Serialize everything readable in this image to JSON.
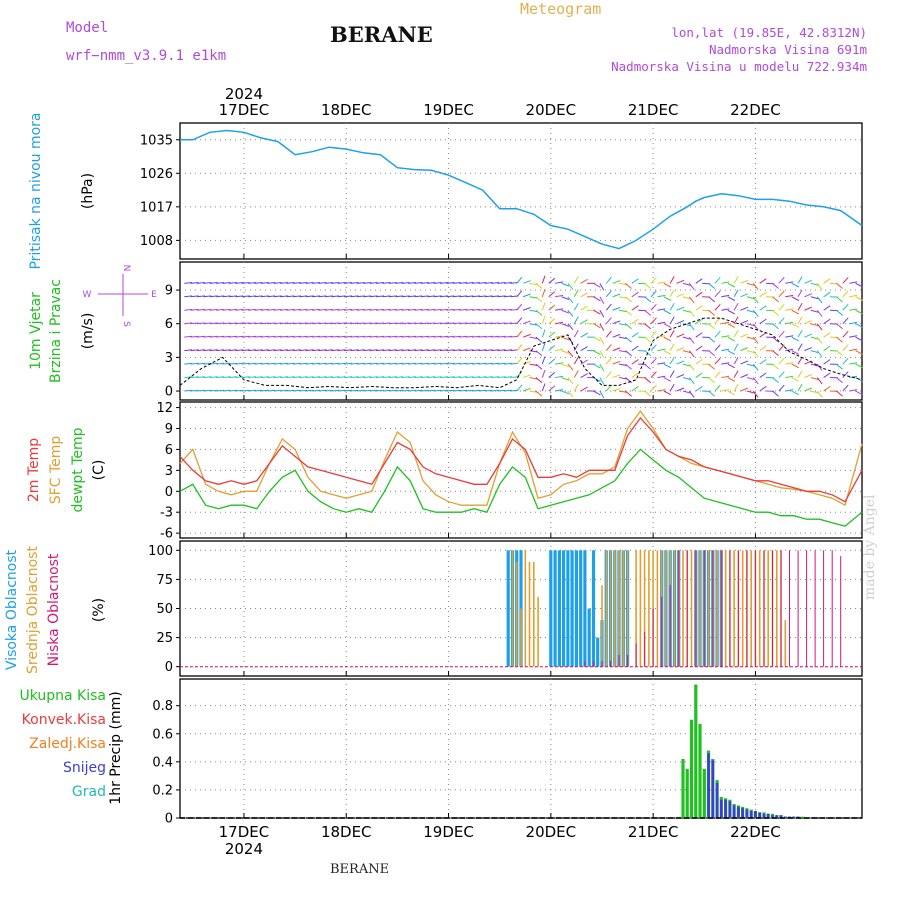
{
  "header": {
    "model_label": "Model",
    "model_name": "wrf−nmm_v3.9.1  e1km",
    "title": "BERANE",
    "meteogram": "Meteogram",
    "lonlat": "lon,lat (19.85E, 42.8312N)",
    "altitude": "Nadmorska Visina 691m",
    "model_altitude": "Nadmorska Visina u modelu 722.934m"
  },
  "footer_label": "BERANE",
  "watermark": "made by Angel",
  "time_axis": {
    "year": "2024",
    "days": [
      "17DEC",
      "18DEC",
      "19DEC",
      "20DEC",
      "21DEC",
      "22DEC"
    ],
    "start_hour": -15,
    "end_hour": 145
  },
  "compass": {
    "n": "N",
    "e": "E",
    "w": "W",
    "s": "S"
  },
  "colors": {
    "pressure": "#1ea0e8",
    "t2m": "#e83c3c",
    "sfc": "#e0a030",
    "dewpt": "#20c020",
    "high_cloud": "#1ea0e8",
    "mid_cloud": "#e0a030",
    "low_cloud": "#d01878",
    "total_precip": "#20c020",
    "conv": "#e83c3c",
    "frozen": "#f08020",
    "snow": "#3c3cd8",
    "graupel": "#20b8b8"
  },
  "chart_data": [
    {
      "type": "line",
      "panel": "pressure",
      "ylabel_name": "Pritisak na nivou mora",
      "ylabel_unit": "(hPa)",
      "yticks": [
        1008,
        1017,
        1026,
        1035
      ],
      "ylim": [
        1003,
        1039.5
      ],
      "series": [
        {
          "key": "pressure",
          "hours": [
            -15,
            -12,
            -8,
            -4,
            0,
            4,
            8,
            12,
            16,
            20,
            24,
            28,
            32,
            36,
            40,
            44,
            48,
            52,
            56,
            60,
            64,
            68,
            72,
            76,
            80,
            84,
            88,
            92,
            96,
            100,
            104,
            106,
            108,
            112,
            116,
            120,
            124,
            128,
            132,
            136,
            140,
            145
          ],
          "values": [
            1035,
            1035,
            1037,
            1037.5,
            1037,
            1035.5,
            1034.5,
            1031,
            1031.8,
            1033,
            1032.5,
            1031.5,
            1031,
            1027.5,
            1027,
            1026.8,
            1025.5,
            1023.5,
            1021.5,
            1016.5,
            1016.5,
            1015,
            1012,
            1011,
            1009,
            1007,
            1005.8,
            1008,
            1011,
            1014.5,
            1017,
            1018.5,
            1019.5,
            1020.5,
            1020,
            1019,
            1019,
            1018.5,
            1017.5,
            1017,
            1016,
            1012
          ]
        }
      ],
      "grid": true
    },
    {
      "type": "line",
      "panel": "wind",
      "ylabel_name": "10m Vjetar Brzina i Pravac",
      "ylabel_unit": "(m/s)",
      "yticks": [
        0,
        3,
        6,
        9
      ],
      "ylim": [
        -0.8,
        11.5
      ],
      "series": [
        {
          "name": "wind speed",
          "hours": [
            -15,
            -10,
            -5,
            0,
            5,
            10,
            15,
            20,
            25,
            30,
            35,
            40,
            45,
            50,
            55,
            60,
            64,
            68,
            72,
            76,
            80,
            84,
            88,
            92,
            96,
            100,
            104,
            108,
            112,
            116,
            120,
            124,
            128,
            132,
            136,
            140,
            145
          ],
          "values": [
            0.5,
            2,
            3,
            1,
            0.5,
            0.5,
            0.3,
            0.4,
            0.3,
            0.4,
            0.3,
            0.3,
            0.4,
            0.3,
            0.5,
            0.3,
            1,
            4,
            4.5,
            5,
            2,
            0.5,
            0.5,
            1,
            4.5,
            5.5,
            6,
            6.5,
            6.5,
            6,
            5.5,
            5,
            3.5,
            2.8,
            2,
            1.5,
            1
          ]
        }
      ],
      "grid": true
    },
    {
      "type": "line",
      "panel": "temperature",
      "ylabel_names": [
        "2m Temp",
        "SFC Temp",
        "dewpt Temp"
      ],
      "ylabel_unit": "(C)",
      "yticks": [
        -6,
        -3,
        0,
        3,
        6,
        9,
        12
      ],
      "ylim": [
        -6.7,
        12.8
      ],
      "series": [
        {
          "key": "t2m",
          "hours": [
            -15,
            -12,
            -9,
            -6,
            -3,
            0,
            3,
            6,
            9,
            12,
            15,
            18,
            21,
            24,
            27,
            30,
            33,
            36,
            39,
            42,
            45,
            48,
            51,
            54,
            57,
            60,
            63,
            66,
            69,
            72,
            75,
            78,
            81,
            84,
            87,
            90,
            93,
            96,
            99,
            102,
            105,
            108,
            111,
            114,
            117,
            120,
            123,
            126,
            129,
            132,
            135,
            138,
            141,
            145
          ],
          "values": [
            5,
            3,
            1.5,
            1,
            1.5,
            1,
            1.5,
            4,
            6.5,
            5,
            3.5,
            3,
            2.5,
            2,
            1.5,
            1,
            4,
            7,
            6,
            3.5,
            2.5,
            2,
            1.5,
            1,
            1,
            4,
            7.5,
            6,
            2,
            2,
            2.5,
            2,
            3,
            3,
            3,
            8,
            10.5,
            8.5,
            6,
            5,
            4.5,
            3.5,
            3,
            2.5,
            2,
            1.5,
            1.5,
            1,
            0.5,
            0,
            0,
            -0.5,
            -1.5,
            3
          ]
        },
        {
          "key": "sfc",
          "hours": [
            -15,
            -12,
            -9,
            -6,
            -3,
            0,
            3,
            6,
            9,
            12,
            15,
            18,
            21,
            24,
            27,
            30,
            33,
            36,
            39,
            42,
            45,
            48,
            51,
            54,
            57,
            60,
            63,
            66,
            69,
            72,
            75,
            78,
            81,
            84,
            87,
            90,
            93,
            96,
            99,
            102,
            105,
            108,
            111,
            114,
            117,
            120,
            123,
            126,
            129,
            132,
            135,
            138,
            141,
            145
          ],
          "values": [
            4,
            6,
            1,
            0,
            -0.5,
            0,
            0,
            4,
            7.5,
            6,
            2,
            0,
            -0.5,
            -1,
            -0.5,
            0,
            4.5,
            8.5,
            7,
            1.5,
            -0.5,
            -1.5,
            -2,
            -2,
            -2,
            4,
            8.5,
            5.5,
            -1,
            -0.5,
            1,
            1.5,
            2.5,
            2.5,
            3.5,
            9,
            11.5,
            9,
            6,
            5,
            4,
            3.5,
            3,
            2.5,
            2,
            1.5,
            1,
            0.5,
            0.3,
            0,
            -0.5,
            -1,
            -2,
            6.8
          ]
        },
        {
          "key": "dewpt",
          "hours": [
            -15,
            -12,
            -9,
            -6,
            -3,
            0,
            3,
            6,
            9,
            12,
            15,
            18,
            21,
            24,
            27,
            30,
            33,
            36,
            39,
            42,
            45,
            48,
            51,
            54,
            57,
            60,
            63,
            66,
            69,
            72,
            75,
            78,
            81,
            84,
            87,
            90,
            93,
            96,
            99,
            102,
            105,
            108,
            111,
            114,
            117,
            120,
            123,
            126,
            129,
            132,
            135,
            138,
            141,
            145
          ],
          "values": [
            0,
            1,
            -2,
            -2.5,
            -2,
            -2,
            -2.5,
            0,
            2,
            3,
            0,
            -1.5,
            -2.5,
            -3,
            -2.5,
            -3,
            0,
            3.5,
            1.5,
            -2.5,
            -3,
            -3,
            -3,
            -2.5,
            -3,
            1,
            3.5,
            2,
            -2.5,
            -2,
            -1.5,
            -1,
            -0.5,
            0.5,
            1.5,
            4,
            6,
            4.5,
            3,
            2,
            0.5,
            -1,
            -1.5,
            -2,
            -2.5,
            -3,
            -3,
            -3.5,
            -3.5,
            -4,
            -4,
            -4.5,
            -5,
            -3
          ]
        }
      ],
      "grid": true
    },
    {
      "type": "bar",
      "panel": "clouds",
      "ylabel_names": [
        "Visoka Oblacnost",
        "Srednja Oblacnost",
        "Niska Oblacnost"
      ],
      "ylabel_unit": "(%)",
      "yticks": [
        0,
        25,
        50,
        75,
        100
      ],
      "ylim": [
        -8,
        108
      ],
      "series": [
        {
          "key": "high_cloud",
          "hours": [
            62,
            63,
            64,
            65,
            72,
            73,
            74,
            75,
            76,
            77,
            78,
            79,
            80,
            81,
            82,
            83,
            84,
            85,
            86,
            87,
            88,
            89,
            90,
            98,
            99,
            100,
            101,
            102,
            106,
            107,
            108,
            109,
            110,
            111,
            112
          ],
          "values": [
            100,
            100,
            100,
            100,
            100,
            100,
            100,
            100,
            100,
            100,
            100,
            100,
            100,
            50,
            100,
            25,
            40,
            100,
            100,
            100,
            100,
            100,
            100,
            100,
            100,
            100,
            100,
            100,
            100,
            100,
            100,
            100,
            100,
            100,
            100
          ]
        },
        {
          "key": "mid_cloud",
          "hours": [
            63,
            64,
            65,
            66,
            67,
            68,
            69,
            70,
            84,
            85,
            86,
            87,
            88,
            89,
            90,
            92,
            93,
            94,
            95,
            96,
            97,
            98,
            99,
            100,
            101,
            102,
            103,
            104,
            105,
            106,
            107,
            108,
            109,
            110,
            111,
            112,
            113,
            114,
            115,
            116,
            117,
            118,
            119,
            120,
            121,
            122,
            123,
            124,
            125,
            126,
            127
          ],
          "values": [
            100,
            90,
            50,
            100,
            90,
            90,
            60,
            0,
            70,
            100,
            100,
            100,
            100,
            100,
            100,
            100,
            100,
            100,
            100,
            100,
            100,
            100,
            100,
            100,
            100,
            100,
            100,
            100,
            100,
            100,
            100,
            100,
            100,
            100,
            100,
            100,
            100,
            100,
            100,
            100,
            100,
            100,
            100,
            100,
            100,
            100,
            100,
            100,
            100,
            100,
            40
          ]
        },
        {
          "key": "low_cloud",
          "hours": [
            80,
            82,
            84,
            86,
            88,
            90,
            92,
            94,
            96,
            98,
            100,
            102,
            104,
            106,
            108,
            110,
            112,
            114,
            116,
            118,
            120,
            122,
            124,
            126,
            128,
            130,
            132,
            134,
            136,
            138,
            140
          ],
          "values": [
            5,
            5,
            5,
            5,
            10,
            10,
            20,
            30,
            50,
            60,
            70,
            100,
            100,
            100,
            100,
            100,
            100,
            100,
            100,
            100,
            100,
            100,
            100,
            100,
            100,
            100,
            100,
            100,
            100,
            100,
            95
          ]
        }
      ],
      "grid": true
    },
    {
      "type": "bar",
      "panel": "precip",
      "ylabel_unit": "1hr Precip (mm)",
      "legend": [
        "Ukupna Kisa",
        "Konvek.Kisa",
        "Zaledj.Kisa",
        "Snijeg",
        "Grad"
      ],
      "yticks": [
        0,
        0.2,
        0.4,
        0.6,
        0.8
      ],
      "ylim": [
        0,
        0.99
      ],
      "series": [
        {
          "key": "total_precip",
          "hours": [
            103,
            104,
            105,
            106,
            107,
            108,
            109,
            110,
            111,
            112,
            113,
            114,
            115,
            116,
            117,
            118,
            119,
            120,
            121,
            122,
            123,
            124,
            125,
            126,
            127,
            128,
            129,
            130,
            131
          ],
          "values": [
            0.42,
            0.35,
            0.7,
            0.95,
            0.67,
            0.35,
            0.48,
            0.42,
            0.27,
            0.15,
            0.14,
            0.13,
            0.1,
            0.09,
            0.08,
            0.07,
            0.06,
            0.05,
            0.04,
            0.04,
            0.03,
            0.03,
            0.02,
            0.02,
            0.01,
            0.01,
            0.01,
            0.01,
            0.01
          ]
        },
        {
          "key": "snow",
          "hours": [
            109,
            110,
            111,
            112,
            113,
            114,
            115,
            116,
            117,
            118,
            119,
            120,
            121,
            122,
            123,
            124,
            125,
            126,
            127,
            128,
            129,
            130
          ],
          "values": [
            0.46,
            0.41,
            0.25,
            0.13,
            0.13,
            0.12,
            0.09,
            0.08,
            0.07,
            0.06,
            0.05,
            0.05,
            0.04,
            0.03,
            0.03,
            0.02,
            0.02,
            0.02,
            0.01,
            0.01,
            0.01,
            0.01
          ]
        }
      ],
      "grid": true
    }
  ]
}
